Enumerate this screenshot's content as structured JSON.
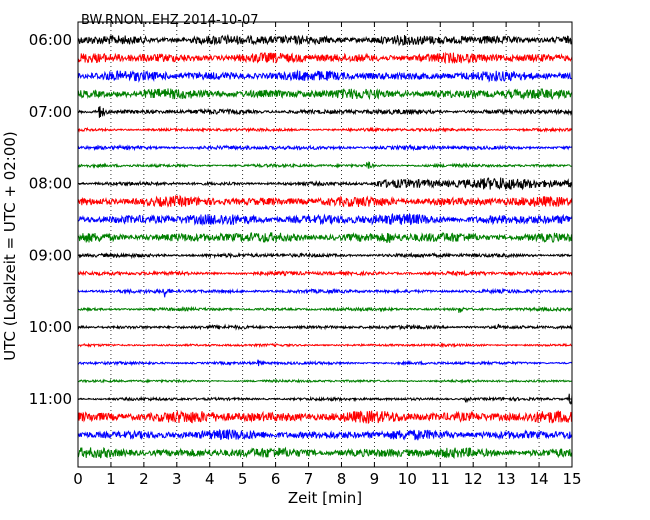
{
  "chart_data": {
    "type": "line",
    "title": "BW.RNON..EHZ 2014-10-07",
    "xlabel": "Zeit  [min]",
    "ylabel": "UTC (Lokalzeit = UTC + 02:00)",
    "xlim": [
      0,
      15
    ],
    "x_ticks": [
      "0",
      "1",
      "2",
      "3",
      "4",
      "5",
      "6",
      "7",
      "8",
      "9",
      "10",
      "11",
      "12",
      "13",
      "14",
      "15"
    ],
    "y_ticks": [
      "06:00",
      "07:00",
      "08:00",
      "09:00",
      "10:00",
      "11:00"
    ],
    "grid": "vertical dotted",
    "colors": [
      "#000000",
      "#ff0000",
      "#0000ff",
      "#008000"
    ],
    "traces": [
      {
        "start": "06:00",
        "color": "#000000",
        "amplitude": 0.5,
        "events": []
      },
      {
        "start": "06:15",
        "color": "#ff0000",
        "amplitude": 0.5,
        "events": []
      },
      {
        "start": "06:30",
        "color": "#0000ff",
        "amplitude": 0.5,
        "events": []
      },
      {
        "start": "06:45",
        "color": "#008000",
        "amplitude": 0.5,
        "events": []
      },
      {
        "start": "07:00",
        "color": "#000000",
        "amplitude": 0.25,
        "events": [
          {
            "t": 0.65,
            "amp": 0.85
          }
        ]
      },
      {
        "start": "07:15",
        "color": "#ff0000",
        "amplitude": 0.15,
        "events": []
      },
      {
        "start": "07:30",
        "color": "#0000ff",
        "amplitude": 0.2,
        "events": []
      },
      {
        "start": "07:45",
        "color": "#008000",
        "amplitude": 0.15,
        "events": [
          {
            "t": 8.8,
            "amp": 0.45
          }
        ]
      },
      {
        "start": "08:00",
        "color": "#000000",
        "amplitude": 0.18,
        "events": [],
        "high_from": 9.0,
        "high_amplitude": 0.6
      },
      {
        "start": "08:15",
        "color": "#ff0000",
        "amplitude": 0.5,
        "events": []
      },
      {
        "start": "08:30",
        "color": "#0000ff",
        "amplitude": 0.55,
        "events": []
      },
      {
        "start": "08:45",
        "color": "#008000",
        "amplitude": 0.5,
        "events": [
          {
            "t": 9.4,
            "amp": 0.85
          }
        ]
      },
      {
        "start": "09:00",
        "color": "#000000",
        "amplitude": 0.2,
        "events": []
      },
      {
        "start": "09:15",
        "color": "#ff0000",
        "amplitude": 0.2,
        "events": []
      },
      {
        "start": "09:30",
        "color": "#0000ff",
        "amplitude": 0.18,
        "events": [
          {
            "t": 2.6,
            "amp": 0.75
          }
        ]
      },
      {
        "start": "09:45",
        "color": "#008000",
        "amplitude": 0.15,
        "events": [
          {
            "t": 11.6,
            "amp": 0.4
          }
        ]
      },
      {
        "start": "10:00",
        "color": "#000000",
        "amplitude": 0.18,
        "events": [
          {
            "t": 12.8,
            "amp": 0.35
          }
        ]
      },
      {
        "start": "10:15",
        "color": "#ff0000",
        "amplitude": 0.12,
        "events": []
      },
      {
        "start": "10:30",
        "color": "#0000ff",
        "amplitude": 0.15,
        "events": [
          {
            "t": 5.5,
            "amp": 0.35
          }
        ]
      },
      {
        "start": "10:45",
        "color": "#008000",
        "amplitude": 0.12,
        "events": []
      },
      {
        "start": "11:00",
        "color": "#000000",
        "amplitude": 0.15,
        "events": [
          {
            "t": 11.8,
            "amp": 0.3
          },
          {
            "t": 14.95,
            "amp": 0.9
          }
        ]
      },
      {
        "start": "11:15",
        "color": "#ff0000",
        "amplitude": 0.6,
        "events": []
      },
      {
        "start": "11:30",
        "color": "#0000ff",
        "amplitude": 0.5,
        "events": []
      },
      {
        "start": "11:45",
        "color": "#008000",
        "amplitude": 0.5,
        "events": []
      }
    ]
  }
}
